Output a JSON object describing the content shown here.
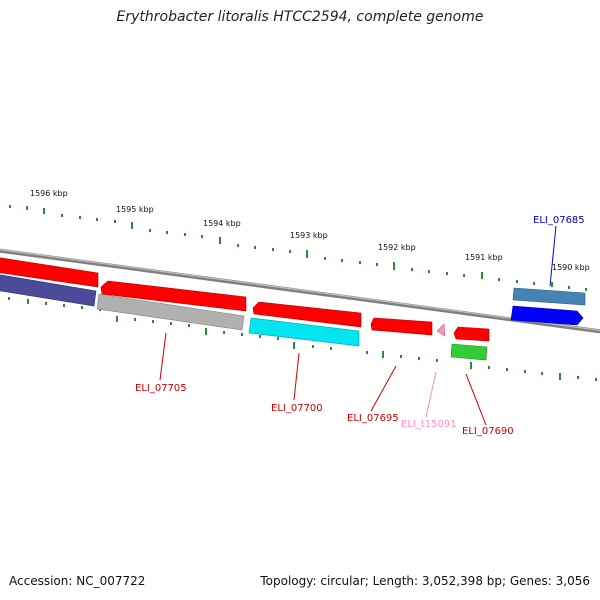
{
  "title": "Erythrobacter litoralis HTCC2594, complete genome",
  "footer": {
    "accession": "Accession: NC_007722",
    "topology": "Topology: circular; Length: 3,052,398 bp; Genes: 3,056"
  },
  "scale_labels": [
    "1596 kbp",
    "1595 kbp",
    "1594 kbp",
    "1593 kbp",
    "1592 kbp",
    "1591 kbp",
    "1590 kbp"
  ],
  "gene_labels": [
    "ELI_07705",
    "ELI_07700",
    "ELI_07695",
    "ELI_t15091",
    "ELI_07690",
    "ELI_07685"
  ],
  "colors": {
    "backbone": "#808080",
    "ticks": "#2e8b2e",
    "red": "#ff0000",
    "navy": "#4b4b9a",
    "grey": "#b0b0b0",
    "cyan": "#00e5ee",
    "green": "#32cd32",
    "pink": "#ff8fbf",
    "steel": "#4682b4",
    "blue": "#0000ff",
    "label_red": "#cc0000",
    "label_pink": "#ff8fbf",
    "label_blue": "#0000cc"
  }
}
